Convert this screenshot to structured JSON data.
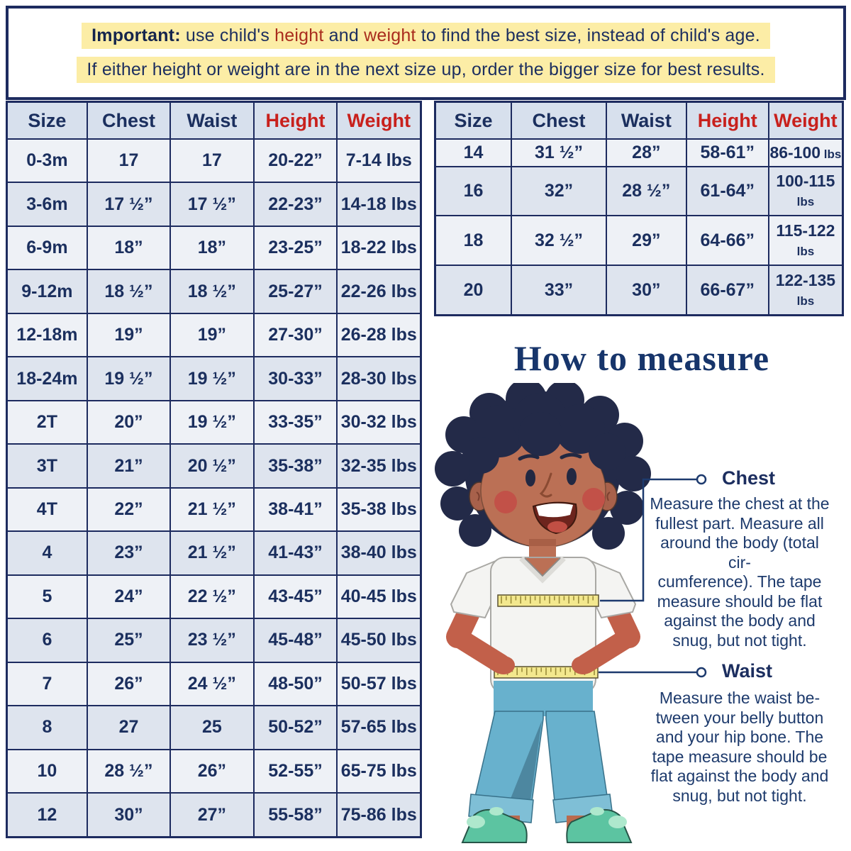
{
  "banner": {
    "line1_segments": [
      {
        "text": "Important:",
        "style": "bold"
      },
      {
        "text": " use child's ",
        "style": "normal"
      },
      {
        "text": "height",
        "style": "red"
      },
      {
        "text": " and ",
        "style": "normal"
      },
      {
        "text": "weight",
        "style": "red"
      },
      {
        "text": " to find the best size, instead of child's age.",
        "style": "normal"
      }
    ],
    "line2": "If either height or weight are in the next size up, order the bigger size for best results.",
    "highlight_color": "#fceda6",
    "border_color": "#1d2b5f"
  },
  "tables": [
    {
      "name": "baby-toddler-kids-size-chart",
      "headers": [
        {
          "label": "Size",
          "red": false
        },
        {
          "label": "Chest",
          "red": false
        },
        {
          "label": "Waist",
          "red": false
        },
        {
          "label": "Height",
          "red": true
        },
        {
          "label": "Weight",
          "red": true
        }
      ],
      "rows": [
        [
          "0-3m",
          "17",
          "17",
          "20-22”",
          "7-14 lbs"
        ],
        [
          "3-6m",
          "17 ½”",
          "17 ½”",
          "22-23”",
          "14-18 lbs"
        ],
        [
          "6-9m",
          "18”",
          "18”",
          "23-25”",
          "18-22 lbs"
        ],
        [
          "9-12m",
          "18 ½”",
          "18 ½”",
          "25-27”",
          "22-26 lbs"
        ],
        [
          "12-18m",
          "19”",
          "19”",
          "27-30”",
          "26-28 lbs"
        ],
        [
          "18-24m",
          "19 ½”",
          "19 ½”",
          "30-33”",
          "28-30 lbs"
        ],
        [
          "2T",
          "20”",
          "19 ½”",
          "33-35”",
          "30-32 lbs"
        ],
        [
          "3T",
          "21”",
          "20 ½”",
          "35-38”",
          "32-35 lbs"
        ],
        [
          "4T",
          "22”",
          "21 ½”",
          "38-41”",
          "35-38 lbs"
        ],
        [
          "4",
          "23”",
          "21 ½”",
          "41-43”",
          "38-40 lbs"
        ],
        [
          "5",
          "24”",
          "22 ½”",
          "43-45”",
          "40-45 lbs"
        ],
        [
          "6",
          "25”",
          "23 ½”",
          "45-48”",
          "45-50 lbs"
        ],
        [
          "7",
          "26”",
          "24 ½”",
          "48-50”",
          "50-57 lbs"
        ],
        [
          "8",
          "27",
          "25",
          "50-52”",
          "57-65 lbs"
        ],
        [
          "10",
          "28 ½”",
          "26”",
          "52-55”",
          "65-75 lbs"
        ],
        [
          "12",
          "30”",
          "27”",
          "55-58”",
          "75-86 lbs"
        ]
      ]
    },
    {
      "name": "youth-size-chart",
      "headers": [
        {
          "label": "Size",
          "red": false
        },
        {
          "label": "Chest",
          "red": false
        },
        {
          "label": "Waist",
          "red": false
        },
        {
          "label": "Height",
          "red": true
        },
        {
          "label": "Weight",
          "red": true
        }
      ],
      "rows": [
        [
          "14",
          "31 ½”",
          "28”",
          "58-61”",
          {
            "value": "86-100",
            "unit": "lbs"
          }
        ],
        [
          "16",
          "32”",
          "28 ½”",
          "61-64”",
          {
            "value": "100-115",
            "unit": "lbs"
          }
        ],
        [
          "18",
          "32 ½”",
          "29”",
          "64-66”",
          {
            "value": "115-122",
            "unit": "lbs"
          }
        ],
        [
          "20",
          "33”",
          "30”",
          "66-67”",
          {
            "value": "122-135",
            "unit": "lbs"
          }
        ]
      ]
    }
  ],
  "how_to_measure": {
    "title": "How to measure",
    "chest": {
      "label": "Chest",
      "text": "Measure the chest at the\nfullest part. Measure all\naround the body (total cir-\ncumference). The tape\nmeasure should be flat\nagainst the body and\nsnug, but not tight."
    },
    "waist": {
      "label": "Waist",
      "text": "Measure the waist be-\ntween your belly button\nand your hip bone. The\ntape measure should be\nflat against the body and\nsnug, but not tight."
    },
    "illustration": "child-with-measuring-tape"
  },
  "colors": {
    "navy_text": "#1c2e5f",
    "red_text": "#c8201c",
    "table_border": "#1d2b5f",
    "header_cell_bg": "#d7e0ed",
    "row_light_bg": "#eef1f6",
    "row_dark_bg": "#dee4ee",
    "banner_highlight": "#fceda6",
    "tape_yellow": "#f3e88e",
    "pants_blue": "#68b1cd",
    "shoe_teal": "#5cc4a1"
  }
}
